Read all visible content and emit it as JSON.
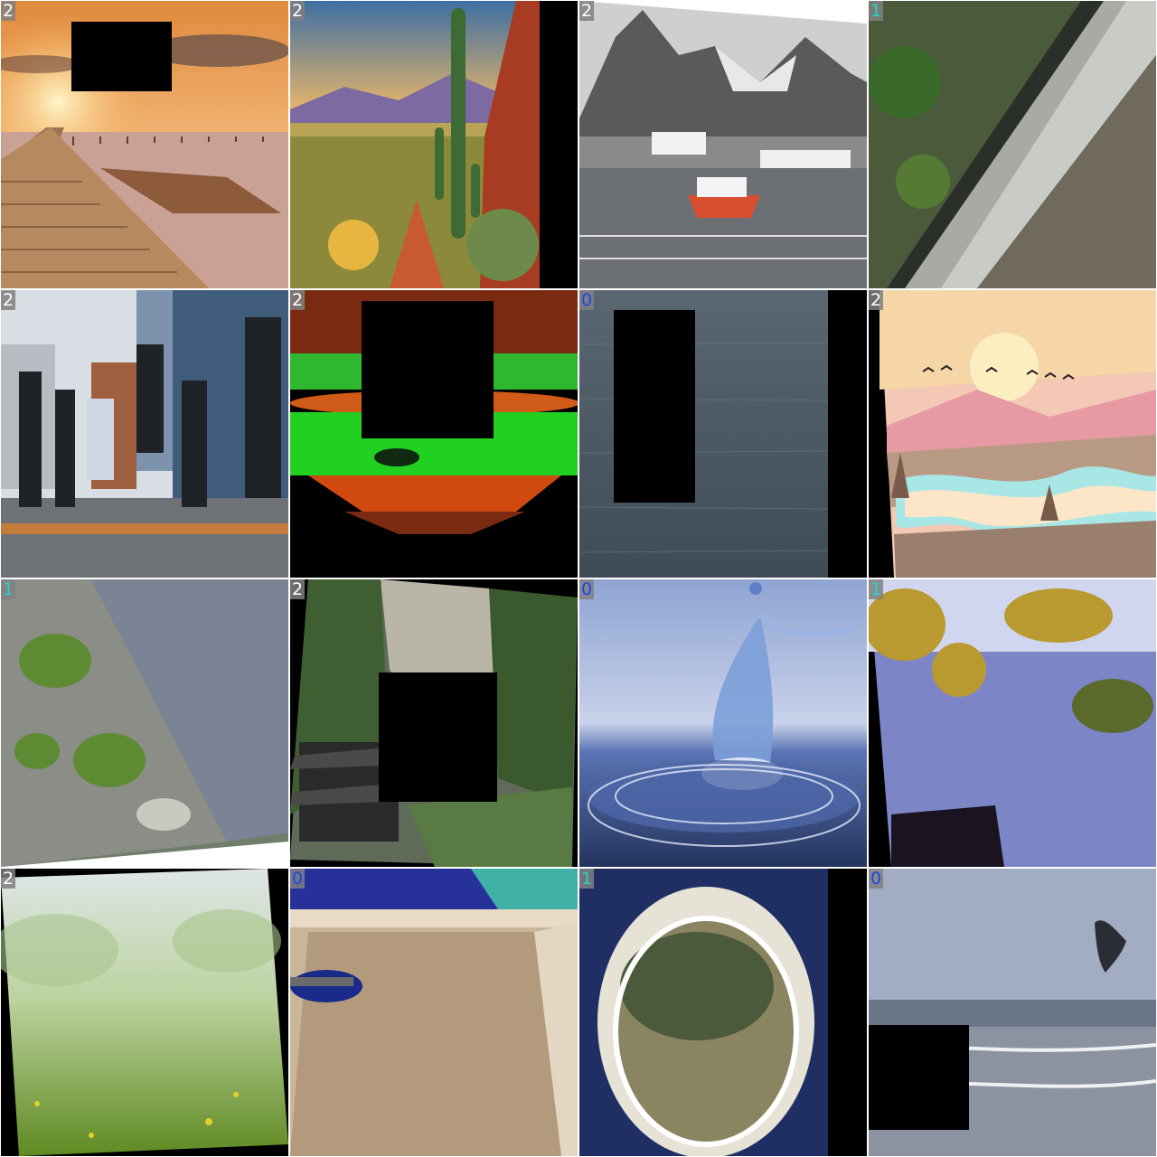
{
  "tiles": [
    {
      "id": "pier-sunset",
      "label": "2"
    },
    {
      "id": "desert-cactus",
      "label": "2"
    },
    {
      "id": "harbor-mountains",
      "label": "2"
    },
    {
      "id": "concrete-ditch",
      "label": "1"
    },
    {
      "id": "city-pedestrians",
      "label": "2"
    },
    {
      "id": "green-red-landscape",
      "label": "2"
    },
    {
      "id": "grey-sea",
      "label": "0"
    },
    {
      "id": "pastel-river-illustration",
      "label": "2"
    },
    {
      "id": "mossy-rock-puddle",
      "label": "1"
    },
    {
      "id": "cliff-temple",
      "label": "2"
    },
    {
      "id": "water-splash",
      "label": "0"
    },
    {
      "id": "pond-foliage",
      "label": "1"
    },
    {
      "id": "grass-meadow",
      "label": "2"
    },
    {
      "id": "sink-basin",
      "label": "0"
    },
    {
      "id": "water-bucket",
      "label": "1"
    },
    {
      "id": "seagull-beach",
      "label": "0"
    }
  ],
  "colors": {
    "label_0": "#1e46e6",
    "label_1": "#20d7c8",
    "label_2": "#ffffff",
    "label_bg": "#808080"
  }
}
